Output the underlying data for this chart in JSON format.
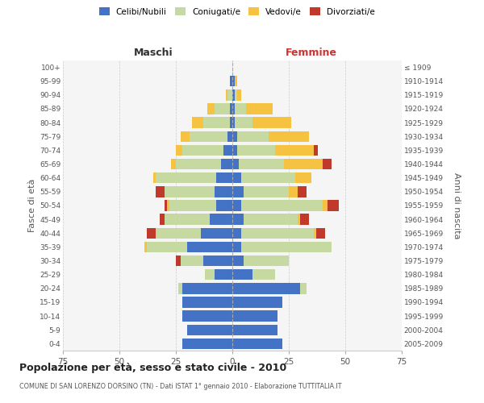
{
  "age_groups": [
    "100+",
    "95-99",
    "90-94",
    "85-89",
    "80-84",
    "75-79",
    "70-74",
    "65-69",
    "60-64",
    "55-59",
    "50-54",
    "45-49",
    "40-44",
    "35-39",
    "30-34",
    "25-29",
    "20-24",
    "15-19",
    "10-14",
    "5-9",
    "0-4"
  ],
  "birth_years": [
    "≤ 1909",
    "1910-1914",
    "1915-1919",
    "1920-1924",
    "1925-1929",
    "1930-1934",
    "1935-1939",
    "1940-1944",
    "1945-1949",
    "1950-1954",
    "1955-1959",
    "1960-1964",
    "1965-1969",
    "1970-1974",
    "1975-1979",
    "1980-1984",
    "1985-1989",
    "1990-1994",
    "1995-1999",
    "2000-2004",
    "2005-2009"
  ],
  "male_celibi": [
    0,
    1,
    0,
    1,
    1,
    2,
    4,
    5,
    7,
    8,
    7,
    10,
    14,
    20,
    13,
    8,
    22,
    22,
    22,
    20,
    22
  ],
  "male_coniugati": [
    0,
    0,
    2,
    7,
    12,
    17,
    18,
    20,
    27,
    22,
    21,
    20,
    20,
    18,
    10,
    4,
    2,
    0,
    0,
    0,
    0
  ],
  "male_vedovi": [
    0,
    0,
    1,
    3,
    5,
    4,
    3,
    2,
    1,
    0,
    1,
    0,
    0,
    1,
    0,
    0,
    0,
    0,
    0,
    0,
    0
  ],
  "male_divorziati": [
    0,
    0,
    0,
    0,
    0,
    0,
    0,
    0,
    0,
    4,
    1,
    2,
    4,
    0,
    2,
    0,
    0,
    0,
    0,
    0,
    0
  ],
  "female_nubili": [
    0,
    1,
    1,
    1,
    1,
    2,
    2,
    3,
    4,
    5,
    4,
    5,
    4,
    4,
    5,
    9,
    30,
    22,
    20,
    20,
    22
  ],
  "female_coniugate": [
    0,
    0,
    1,
    5,
    8,
    14,
    17,
    20,
    24,
    20,
    36,
    24,
    32,
    40,
    20,
    10,
    3,
    0,
    0,
    0,
    0
  ],
  "female_vedove": [
    0,
    1,
    2,
    12,
    17,
    18,
    17,
    17,
    7,
    4,
    2,
    1,
    1,
    0,
    0,
    0,
    0,
    0,
    0,
    0,
    0
  ],
  "female_divorziate": [
    0,
    0,
    0,
    0,
    0,
    0,
    2,
    4,
    0,
    4,
    5,
    4,
    4,
    0,
    0,
    0,
    0,
    0,
    0,
    0,
    0
  ],
  "color_celibi": "#4472c4",
  "color_coniugati": "#c5d9a0",
  "color_vedovi": "#f5c242",
  "color_divorziati": "#c0392b",
  "xlim": 75,
  "title": "Popolazione per età, sesso e stato civile - 2010",
  "subtitle": "COMUNE DI SAN LORENZO DORSINO (TN) - Dati ISTAT 1° gennaio 2010 - Elaborazione TUTTITALIA.IT",
  "ylabel_left": "Fasce di età",
  "ylabel_right": "Anni di nascita",
  "header_left": "Maschi",
  "header_right": "Femmine",
  "legend_labels": [
    "Celibi/Nubili",
    "Coniugati/e",
    "Vedovi/e",
    "Divorziati/e"
  ],
  "bg_color": "#ffffff",
  "plot_bg_color": "#f5f5f5"
}
